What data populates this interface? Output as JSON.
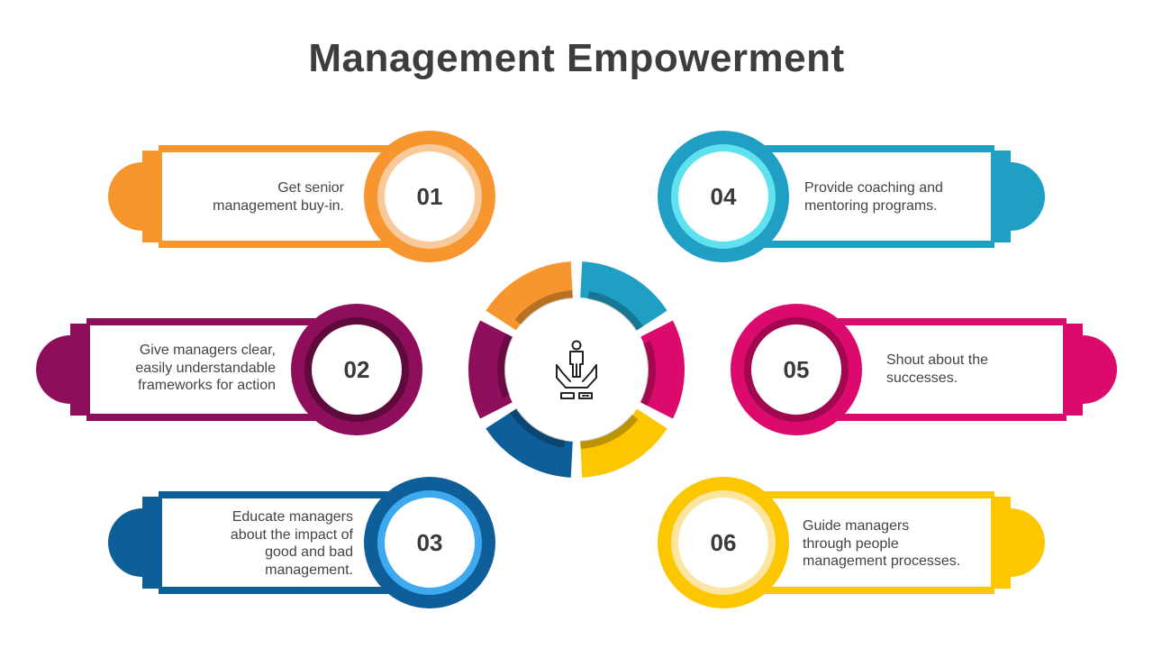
{
  "title": "Management Empowerment",
  "center_icon": "empowerment-hands-icon",
  "items": [
    {
      "number": "01",
      "lines": [
        "Get senior",
        "management buy-in."
      ],
      "color": "#f7962f",
      "inner": "#f9c99a",
      "side": "left"
    },
    {
      "number": "02",
      "lines": [
        "Give managers clear,",
        "easily understandable",
        "frameworks for action"
      ],
      "color": "#8e0e5b",
      "inner": "#5e0a3c",
      "side": "left"
    },
    {
      "number": "03",
      "lines": [
        "Educate managers",
        "about the impact of",
        "good and bad",
        "management."
      ],
      "color": "#0d5e99",
      "inner": "#3fa9f0",
      "side": "left"
    },
    {
      "number": "04",
      "lines": [
        "Provide coaching and",
        "mentoring programs."
      ],
      "color": "#1f9fc4",
      "inner": "#5ee2f0",
      "side": "right"
    },
    {
      "number": "05",
      "lines": [
        "Shout about the",
        "successes."
      ],
      "color": "#dc0a6c",
      "inner": "#a10850",
      "side": "right"
    },
    {
      "number": "06",
      "lines": [
        "Guide managers",
        "through people",
        "management processes."
      ],
      "color": "#fcc600",
      "inner": "#fde5a0",
      "side": "right"
    }
  ],
  "ring_colors": [
    "#1f9fc4",
    "#dc0a6c",
    "#fcc600",
    "#0d5e99",
    "#8e0e5b",
    "#f7962f"
  ]
}
